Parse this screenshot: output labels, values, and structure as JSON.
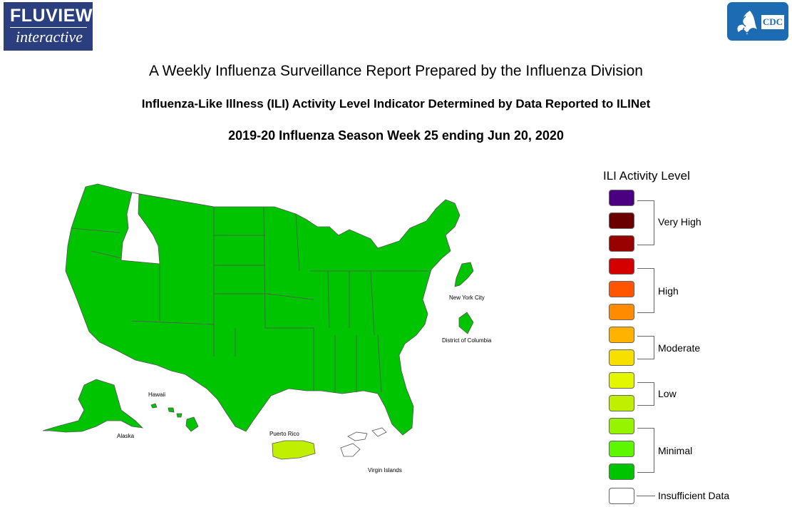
{
  "header": {
    "logo_word1": "FLUVIEW",
    "logo_word2": "interactive",
    "cdc_text": "CDC",
    "title": "A Weekly Influenza Surveillance Report Prepared by the Influenza Division",
    "subtitle": "Influenza-Like Illness (ILI) Activity Level Indicator Determined by Data Reported to ILINet",
    "season": "2019-20 Influenza Season Week 25 ending Jun 20, 2020"
  },
  "map": {
    "labels": {
      "new_york_city": "New York City",
      "district_of_columbia": "District of Columbia",
      "hawaii": "Hawaii",
      "alaska": "Alaska",
      "puerto_rico": "Puerto Rico",
      "virgin_islands": "Virgin Islands"
    },
    "colors": {
      "minimal_green": "#00c400",
      "low_yellowgreen": "#c0f000",
      "insufficient": "#ffffff",
      "border": "#555555"
    },
    "levels_shown": {
      "most_states": "Minimal",
      "idaho": "Insufficient Data",
      "puerto_rico": "Low",
      "virgin_islands": "Insufficient Data"
    }
  },
  "legend": {
    "title": "ILI Activity Level",
    "swatches": [
      "#4b0082",
      "#6b0000",
      "#990000",
      "#d40000",
      "#ff5500",
      "#ff8c00",
      "#ffb300",
      "#f7e000",
      "#e3f700",
      "#c0f000",
      "#97f400",
      "#5df700",
      "#00c400",
      "#ffffff"
    ],
    "groups": [
      {
        "label": "Very High"
      },
      {
        "label": "High"
      },
      {
        "label": "Moderate"
      },
      {
        "label": "Low"
      },
      {
        "label": "Minimal"
      },
      {
        "label": "Insufficient Data"
      }
    ]
  }
}
